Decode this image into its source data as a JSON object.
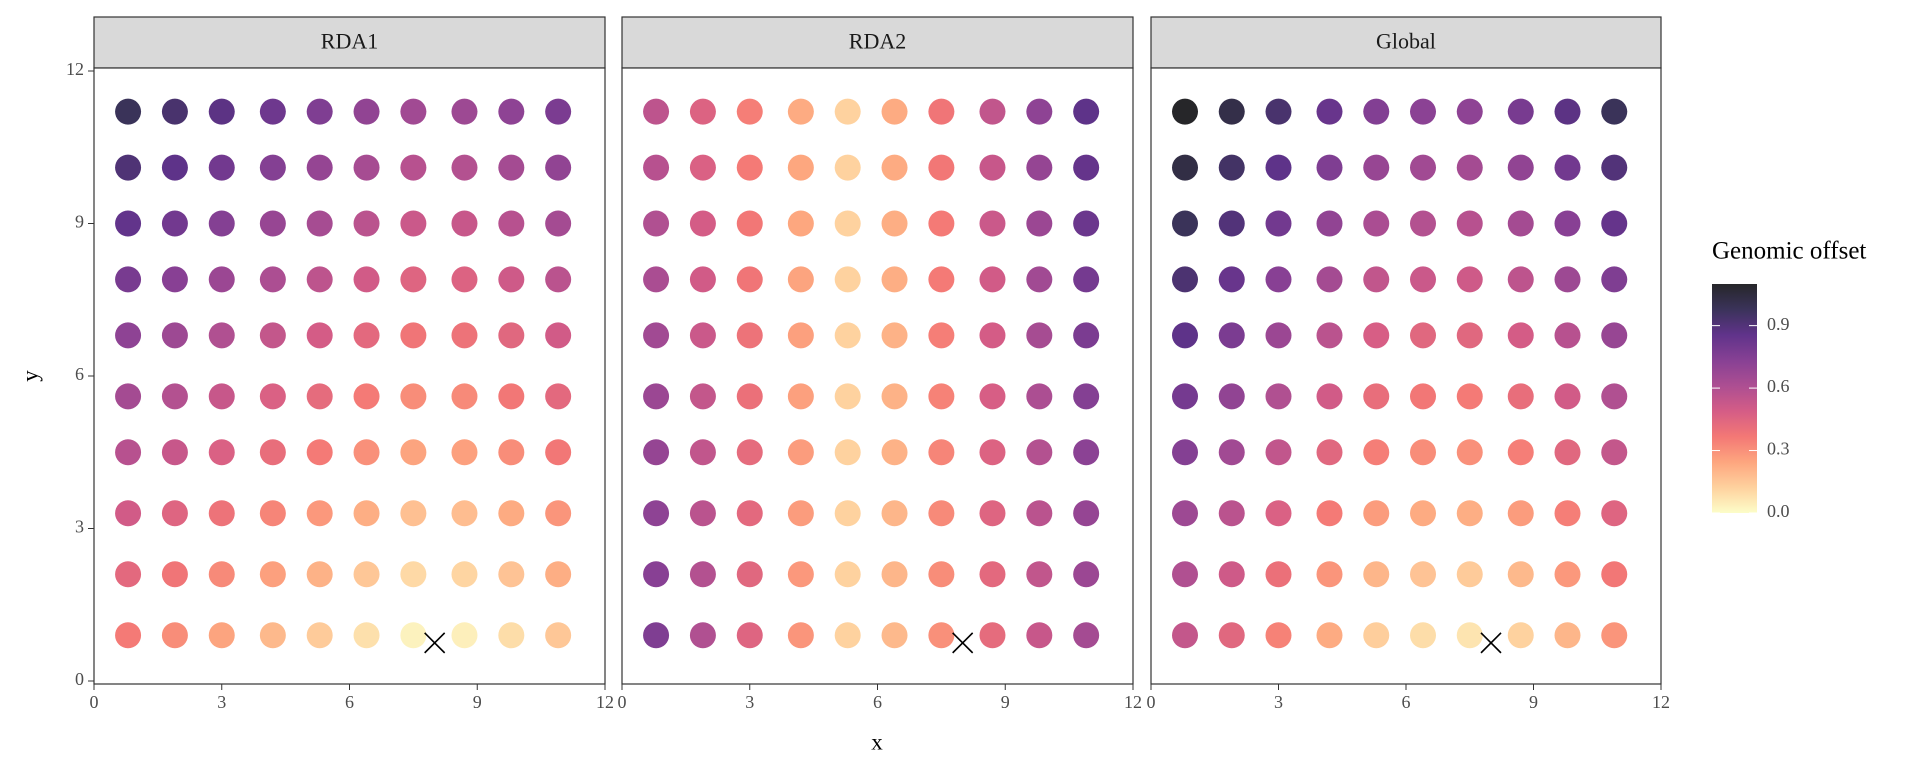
{
  "chart_data": {
    "type": "scatter",
    "xlabel": "x",
    "ylabel": "y",
    "xlim": [
      0,
      12
    ],
    "ylim": [
      0,
      12
    ],
    "xticks": [
      0,
      3,
      6,
      9,
      12
    ],
    "yticks": [
      0,
      3,
      6,
      9,
      12
    ],
    "x": [
      0.8,
      1.9,
      3.0,
      4.2,
      5.3,
      6.4,
      7.5,
      8.7,
      9.8,
      10.9,
      0.8,
      1.9,
      3.0,
      4.2,
      5.3,
      6.4,
      7.5,
      8.7,
      9.8,
      10.9,
      0.8,
      1.9,
      3.0,
      4.2,
      5.3,
      6.4,
      7.5,
      8.7,
      9.8,
      10.9,
      0.8,
      1.9,
      3.0,
      4.2,
      5.3,
      6.4,
      7.5,
      8.7,
      9.8,
      10.9,
      0.8,
      1.9,
      3.0,
      4.2,
      5.3,
      6.4,
      7.5,
      8.7,
      9.8,
      10.9,
      0.8,
      1.9,
      3.0,
      4.2,
      5.3,
      6.4,
      7.5,
      8.7,
      9.8,
      10.9,
      0.8,
      1.9,
      3.0,
      4.2,
      5.3,
      6.4,
      7.5,
      8.7,
      9.8,
      10.9,
      0.8,
      1.9,
      3.0,
      4.2,
      5.3,
      6.4,
      7.5,
      8.7,
      9.8,
      10.9,
      0.8,
      1.9,
      3.0,
      4.2,
      5.3,
      6.4,
      7.5,
      8.7,
      9.8,
      10.9,
      0.8,
      1.9,
      3.0,
      4.2,
      5.3,
      6.4,
      7.5,
      8.7,
      9.8,
      10.9
    ],
    "y": [
      0.9,
      0.9,
      0.9,
      0.9,
      0.9,
      0.9,
      0.9,
      0.9,
      0.9,
      0.9,
      2.1,
      2.1,
      2.1,
      2.1,
      2.1,
      2.1,
      2.1,
      2.1,
      2.1,
      2.1,
      3.3,
      3.3,
      3.3,
      3.3,
      3.3,
      3.3,
      3.3,
      3.3,
      3.3,
      3.3,
      4.5,
      4.5,
      4.5,
      4.5,
      4.5,
      4.5,
      4.5,
      4.5,
      4.5,
      4.5,
      5.6,
      5.6,
      5.6,
      5.6,
      5.6,
      5.6,
      5.6,
      5.6,
      5.6,
      5.6,
      6.8,
      6.8,
      6.8,
      6.8,
      6.8,
      6.8,
      6.8,
      6.8,
      6.8,
      6.8,
      7.9,
      7.9,
      7.9,
      7.9,
      7.9,
      7.9,
      7.9,
      7.9,
      7.9,
      7.9,
      9.0,
      9.0,
      9.0,
      9.0,
      9.0,
      9.0,
      9.0,
      9.0,
      9.0,
      9.0,
      10.1,
      10.1,
      10.1,
      10.1,
      10.1,
      10.1,
      10.1,
      10.1,
      10.1,
      10.1,
      11.2,
      11.2,
      11.2,
      11.2,
      11.2,
      11.2,
      11.2,
      11.2,
      11.2,
      11.2
    ],
    "series": [
      {
        "name": "RDA1",
        "values": [
          0.36,
          0.31,
          0.25,
          0.19,
          0.14,
          0.08,
          0.03,
          0.04,
          0.09,
          0.15,
          0.43,
          0.38,
          0.32,
          0.26,
          0.21,
          0.15,
          0.1,
          0.11,
          0.16,
          0.22,
          0.5,
          0.45,
          0.39,
          0.33,
          0.28,
          0.22,
          0.17,
          0.18,
          0.23,
          0.29,
          0.58,
          0.53,
          0.47,
          0.41,
          0.36,
          0.3,
          0.25,
          0.26,
          0.31,
          0.37,
          0.64,
          0.59,
          0.53,
          0.47,
          0.42,
          0.36,
          0.31,
          0.32,
          0.37,
          0.43,
          0.71,
          0.66,
          0.6,
          0.54,
          0.49,
          0.43,
          0.38,
          0.39,
          0.44,
          0.5,
          0.78,
          0.73,
          0.67,
          0.61,
          0.56,
          0.5,
          0.45,
          0.46,
          0.51,
          0.57,
          0.85,
          0.8,
          0.74,
          0.68,
          0.63,
          0.57,
          0.52,
          0.53,
          0.58,
          0.64,
          0.91,
          0.86,
          0.8,
          0.74,
          0.69,
          0.63,
          0.58,
          0.59,
          0.64,
          0.7,
          0.98,
          0.93,
          0.87,
          0.81,
          0.76,
          0.7,
          0.65,
          0.66,
          0.71,
          0.77
        ]
      },
      {
        "name": "RDA2",
        "values": [
          0.76,
          0.6,
          0.45,
          0.29,
          0.12,
          0.19,
          0.3,
          0.42,
          0.53,
          0.64,
          0.73,
          0.59,
          0.44,
          0.28,
          0.12,
          0.2,
          0.31,
          0.43,
          0.55,
          0.67,
          0.71,
          0.57,
          0.43,
          0.27,
          0.12,
          0.2,
          0.32,
          0.45,
          0.57,
          0.69,
          0.69,
          0.55,
          0.42,
          0.27,
          0.12,
          0.21,
          0.33,
          0.46,
          0.59,
          0.72,
          0.67,
          0.54,
          0.4,
          0.26,
          0.12,
          0.21,
          0.34,
          0.48,
          0.61,
          0.74,
          0.65,
          0.52,
          0.39,
          0.26,
          0.12,
          0.21,
          0.35,
          0.49,
          0.63,
          0.77,
          0.62,
          0.5,
          0.38,
          0.25,
          0.12,
          0.22,
          0.36,
          0.5,
          0.65,
          0.79,
          0.6,
          0.49,
          0.37,
          0.24,
          0.12,
          0.22,
          0.36,
          0.52,
          0.67,
          0.82,
          0.58,
          0.47,
          0.36,
          0.24,
          0.12,
          0.23,
          0.37,
          0.53,
          0.69,
          0.84,
          0.56,
          0.46,
          0.35,
          0.23,
          0.12,
          0.23,
          0.38,
          0.55,
          0.71,
          0.86
        ]
      },
      {
        "name": "Global",
        "values": [
          0.54,
          0.44,
          0.34,
          0.23,
          0.13,
          0.09,
          0.07,
          0.12,
          0.2,
          0.29,
          0.6,
          0.51,
          0.4,
          0.29,
          0.2,
          0.16,
          0.14,
          0.19,
          0.28,
          0.37,
          0.66,
          0.57,
          0.47,
          0.36,
          0.27,
          0.23,
          0.22,
          0.27,
          0.35,
          0.45,
          0.74,
          0.65,
          0.55,
          0.44,
          0.35,
          0.31,
          0.3,
          0.35,
          0.44,
          0.54,
          0.79,
          0.7,
          0.6,
          0.5,
          0.41,
          0.37,
          0.36,
          0.41,
          0.5,
          0.6,
          0.86,
          0.77,
          0.67,
          0.57,
          0.48,
          0.44,
          0.44,
          0.49,
          0.58,
          0.68,
          0.92,
          0.83,
          0.73,
          0.64,
          0.55,
          0.52,
          0.51,
          0.56,
          0.66,
          0.76,
          0.98,
          0.9,
          0.8,
          0.7,
          0.62,
          0.59,
          0.58,
          0.64,
          0.73,
          0.84,
          1.03,
          0.95,
          0.86,
          0.76,
          0.68,
          0.65,
          0.64,
          0.7,
          0.8,
          0.9,
          1.1,
          1.02,
          0.93,
          0.83,
          0.75,
          0.72,
          0.71,
          0.78,
          0.87,
          0.98
        ]
      }
    ],
    "colorbar": {
      "title": "Genomic offset",
      "lim": [
        0,
        1.1
      ],
      "ticks": [
        {
          "value": 0,
          "label": "0.0"
        },
        0.3,
        0.6,
        0.9
      ],
      "colors": [
        "#fcfdbf",
        "#fec98d",
        "#fd9668",
        "#f1605d",
        "#cd4071",
        "#9e2f7f",
        "#721f81",
        "#440f76",
        "#180f3d",
        "#000004"
      ]
    },
    "marker": {
      "x": 8,
      "y": 0.75
    }
  }
}
